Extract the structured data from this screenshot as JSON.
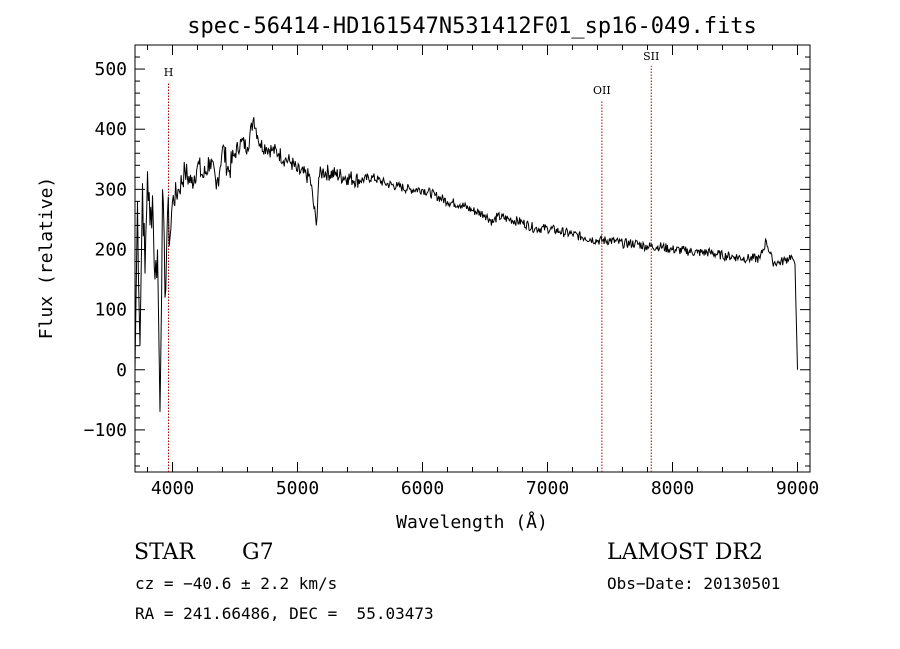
{
  "chart_data": {
    "type": "line",
    "title": "spec-56414-HD161547N531412F01_sp16-049.fits",
    "xlabel": "Wavelength (Å)",
    "ylabel": "Flux (relative)",
    "xlim": [
      3700,
      9100
    ],
    "ylim": [
      -170,
      540
    ],
    "xticks": [
      4000,
      5000,
      6000,
      7000,
      8000,
      9000
    ],
    "yticks": [
      -100,
      0,
      100,
      200,
      300,
      400,
      500
    ],
    "grid": false,
    "series": [
      {
        "x": [
          3700,
          3720,
          3740,
          3760,
          3780,
          3800,
          3820,
          3840,
          3860,
          3880,
          3900,
          3920,
          3940,
          3960,
          3980,
          4000,
          4050,
          4100,
          4150,
          4200,
          4250,
          4300,
          4350,
          4400,
          4450,
          4500,
          4550,
          4600,
          4650,
          4680,
          4700,
          4750,
          4800,
          4850,
          4900,
          4950,
          5000,
          5100,
          5150,
          5170,
          5200,
          5300,
          5400,
          5500,
          5600,
          5700,
          5800,
          5900,
          6000,
          6100,
          6200,
          6300,
          6400,
          6500,
          6563,
          6600,
          6700,
          6800,
          6900,
          7000,
          7100,
          7200,
          7300,
          7400,
          7500,
          7600,
          7700,
          7800,
          7900,
          8000,
          8100,
          8200,
          8300,
          8400,
          8500,
          8600,
          8700,
          8750,
          8800,
          8850,
          8900,
          8950,
          8980,
          9000
        ],
        "y": [
          0,
          280,
          40,
          310,
          160,
          330,
          240,
          290,
          150,
          200,
          -70,
          300,
          120,
          260,
          220,
          280,
          300,
          330,
          310,
          340,
          320,
          350,
          300,
          370,
          330,
          360,
          380,
          370,
          420,
          390,
          375,
          370,
          365,
          360,
          350,
          345,
          330,
          320,
          240,
          320,
          330,
          325,
          320,
          315,
          320,
          310,
          305,
          300,
          300,
          290,
          280,
          275,
          265,
          258,
          245,
          255,
          250,
          245,
          235,
          235,
          230,
          225,
          220,
          215,
          215,
          210,
          210,
          205,
          205,
          200,
          198,
          195,
          195,
          190,
          188,
          185,
          185,
          215,
          180,
          178,
          182,
          190,
          175,
          0
        ]
      }
    ],
    "lines": [
      {
        "label": "H",
        "x": 3968
      },
      {
        "label": "OII",
        "x": 7435
      },
      {
        "label": "SII",
        "x": 7830
      }
    ]
  },
  "info": {
    "object_class": "STAR",
    "subclass": "G7",
    "cz": "cz = −40.6 ± 2.2 km/s",
    "coords": "RA = 241.66486, DEC =  55.03473",
    "survey": "LAMOST DR2",
    "obs_date": "Obs−Date: 20130501"
  }
}
